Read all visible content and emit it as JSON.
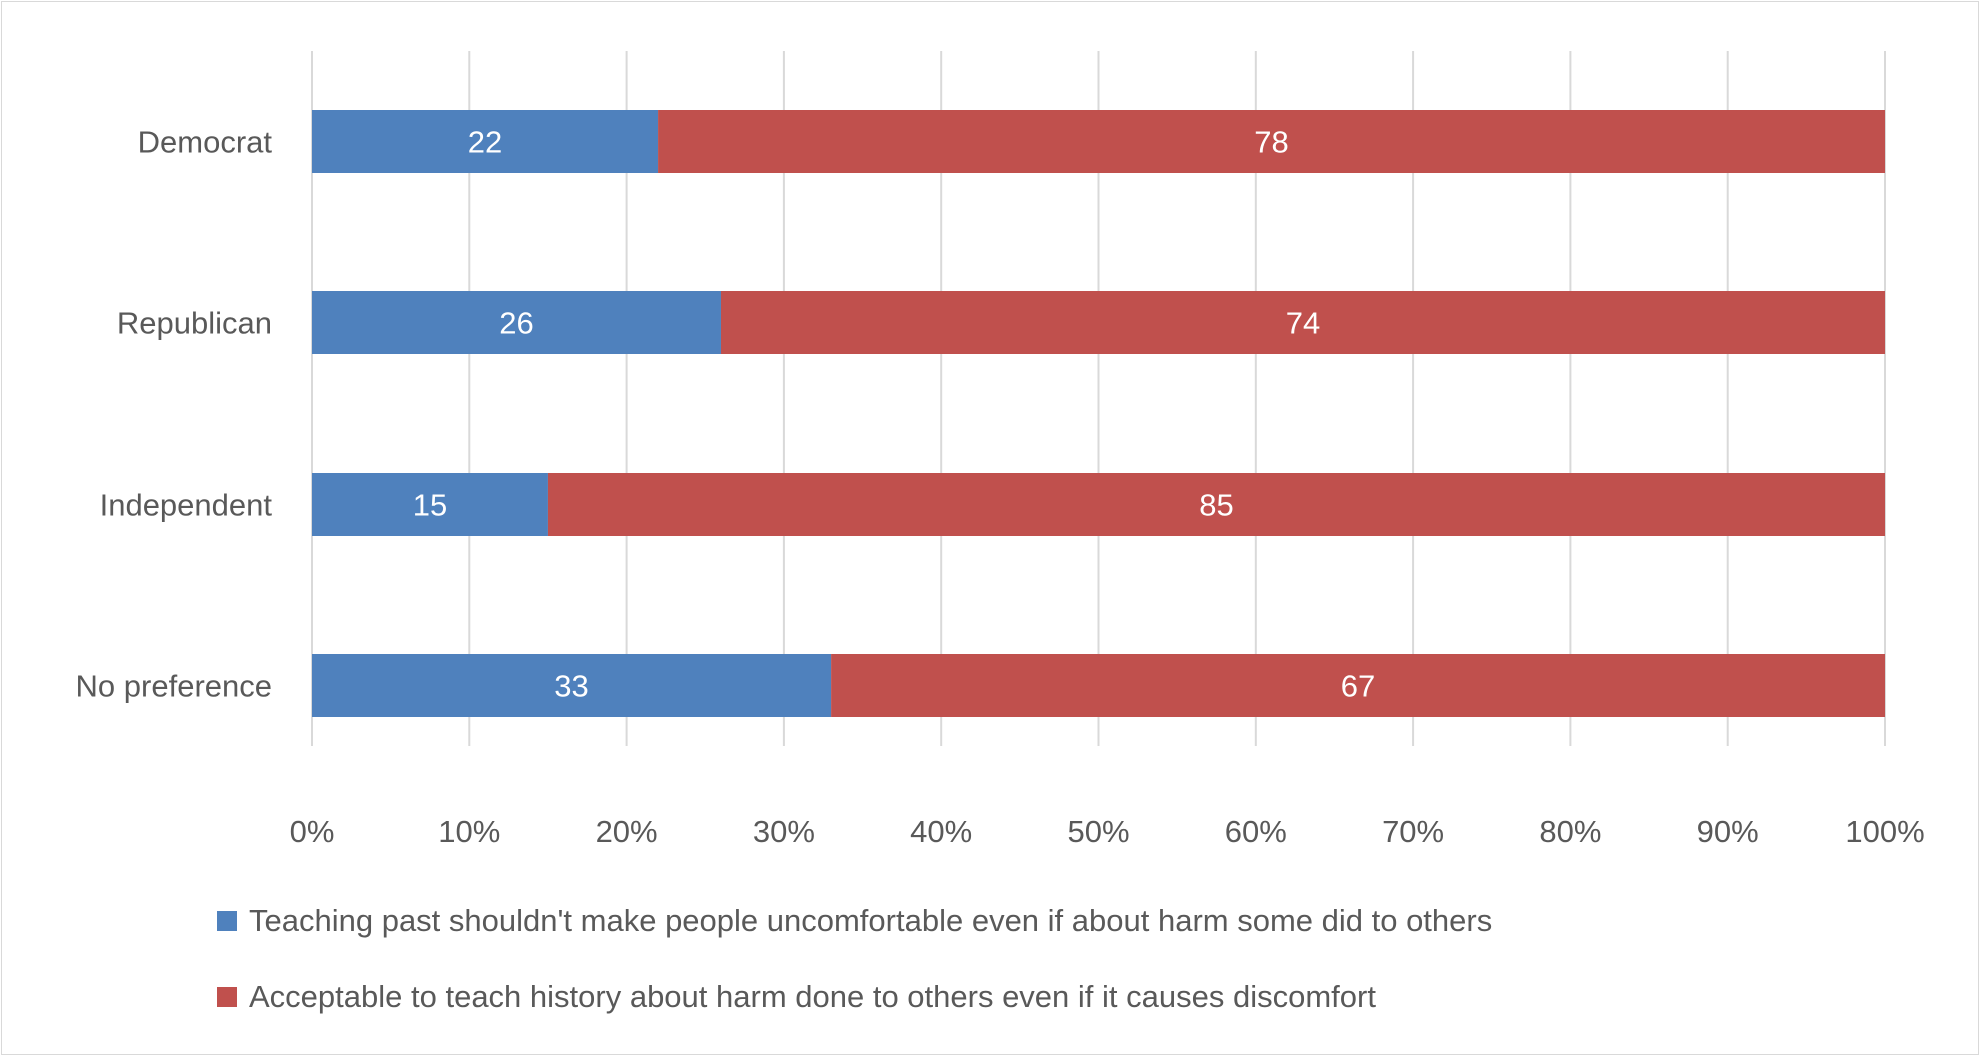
{
  "chart_data": {
    "type": "bar",
    "orientation": "horizontal",
    "stacked": "100%",
    "categories": [
      "Democrat",
      "Republican",
      "Independent",
      "No preference"
    ],
    "series": [
      {
        "name": "Teaching past shouldn't make people uncomfortable even if about harm some did to others",
        "values": [
          22,
          26,
          15,
          33
        ],
        "color": "#4F81BD"
      },
      {
        "name": "Acceptable to teach history about harm done to others even if it causes discomfort",
        "values": [
          78,
          74,
          85,
          67
        ],
        "color": "#C0504D"
      }
    ],
    "xlim": [
      0,
      100
    ],
    "x_ticks": [
      "0%",
      "10%",
      "20%",
      "30%",
      "40%",
      "50%",
      "60%",
      "70%",
      "80%",
      "90%",
      "100%"
    ],
    "grid": true,
    "legend": "bottom",
    "data_labels": true
  }
}
